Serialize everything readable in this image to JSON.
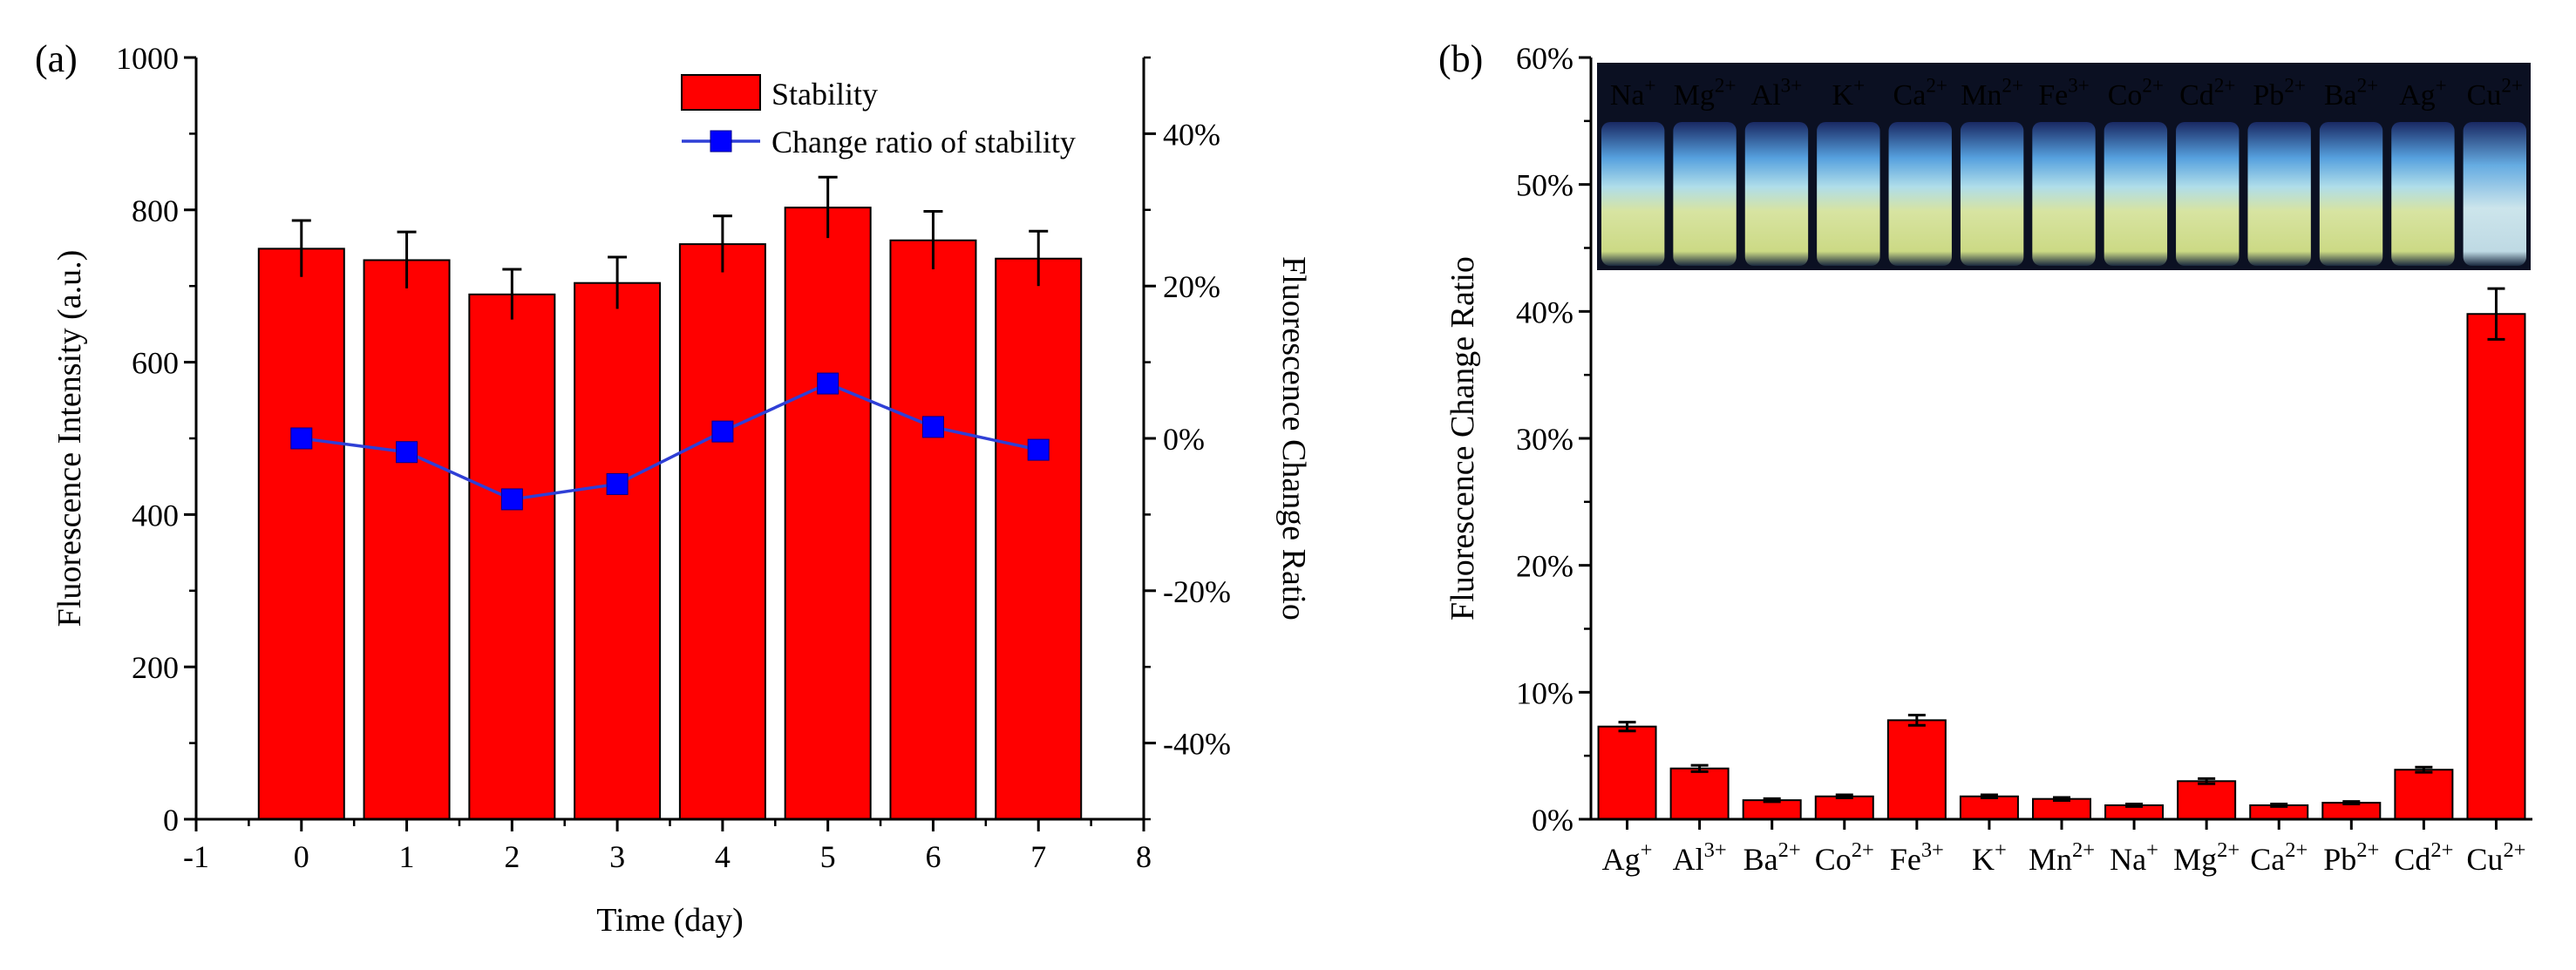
{
  "chart_data": [
    {
      "panel": "(a)",
      "type": "bar",
      "x": [
        0,
        1,
        2,
        3,
        4,
        5,
        6,
        7
      ],
      "xlim": [
        -1,
        8
      ],
      "xticks": [
        "-1",
        "0",
        "1",
        "2",
        "3",
        "4",
        "5",
        "6",
        "7",
        "8"
      ],
      "xlabel": "Time (day)",
      "ylabel": "Fluorescence Intensity (a.u.)",
      "ylim": [
        0,
        1000
      ],
      "yticks": [
        "0",
        "200",
        "400",
        "600",
        "800",
        "1000"
      ],
      "y2label": "Fluorescence  Change Ratio",
      "y2lim": [
        -50,
        50
      ],
      "y2ticks": [
        "-40%",
        "-20%",
        "0%",
        "20%",
        "40%"
      ],
      "series": [
        {
          "name": "Stability",
          "kind": "bar",
          "color": "#ff0000",
          "values": [
            749,
            734,
            689,
            704,
            755,
            803,
            760,
            736
          ],
          "errors": [
            37,
            37,
            33,
            34,
            37,
            40,
            38,
            36
          ]
        },
        {
          "name": "Change ratio of stability",
          "kind": "line",
          "axis": "right",
          "color": "#0000ff",
          "line_color": "#2f3fd6",
          "values": [
            0,
            -1.8,
            -8.0,
            -6.0,
            0.9,
            7.2,
            1.5,
            -1.5
          ]
        }
      ],
      "legend": [
        "Stability",
        "Change ratio of stability"
      ]
    },
    {
      "panel": "(b)",
      "type": "bar",
      "categories": [
        {
          "base": "Ag",
          "sup": "+"
        },
        {
          "base": "Al",
          "sup": "3+"
        },
        {
          "base": "Ba",
          "sup": "2+"
        },
        {
          "base": "Co",
          "sup": "2+"
        },
        {
          "base": "Fe",
          "sup": "3+"
        },
        {
          "base": "K",
          "sup": "+"
        },
        {
          "base": "Mn",
          "sup": "2+"
        },
        {
          "base": "Na",
          "sup": "+"
        },
        {
          "base": "Mg",
          "sup": "2+"
        },
        {
          "base": "Ca",
          "sup": "2+"
        },
        {
          "base": "Pb",
          "sup": "2+"
        },
        {
          "base": "Cd",
          "sup": "2+"
        },
        {
          "base": "Cu",
          "sup": "2+"
        }
      ],
      "values": [
        7.3,
        4.0,
        1.5,
        1.8,
        7.8,
        1.8,
        1.6,
        1.1,
        3.0,
        1.1,
        1.3,
        3.9,
        39.8
      ],
      "errors": [
        0.35,
        0.25,
        0.12,
        0.12,
        0.4,
        0.12,
        0.12,
        0.1,
        0.2,
        0.1,
        0.1,
        0.2,
        2.0
      ],
      "color": "#ff0000",
      "ylabel": "Fluorescence Change Ratio",
      "ylim": [
        0,
        60
      ],
      "yticks": [
        "0%",
        "10%",
        "20%",
        "30%",
        "40%",
        "50%",
        "60%"
      ],
      "inset": {
        "description": "photo of vials under UV light",
        "labels": [
          {
            "base": "Na",
            "sup": "+"
          },
          {
            "base": "Mg",
            "sup": "2+"
          },
          {
            "base": "Al",
            "sup": "3+"
          },
          {
            "base": "K",
            "sup": "+"
          },
          {
            "base": "Ca",
            "sup": "2+"
          },
          {
            "base": "Mn",
            "sup": "2+"
          },
          {
            "base": "Fe",
            "sup": "3+"
          },
          {
            "base": "Co",
            "sup": "2+"
          },
          {
            "base": "Cd",
            "sup": "2+"
          },
          {
            "base": "Pb",
            "sup": "2+"
          },
          {
            "base": "Ba",
            "sup": "2+"
          },
          {
            "base": "Ag",
            "sup": "+"
          },
          {
            "base": "Cu",
            "sup": "2+"
          }
        ]
      }
    }
  ]
}
